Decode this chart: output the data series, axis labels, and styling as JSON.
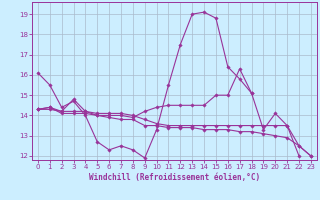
{
  "xlabel": "Windchill (Refroidissement éolien,°C)",
  "background_color": "#cceeff",
  "grid_color": "#aabbcc",
  "line_color": "#993399",
  "xlim": [
    -0.5,
    23.5
  ],
  "ylim": [
    11.8,
    19.6
  ],
  "yticks": [
    12,
    13,
    14,
    15,
    16,
    17,
    18,
    19
  ],
  "xticks": [
    0,
    1,
    2,
    3,
    4,
    5,
    6,
    7,
    8,
    9,
    10,
    11,
    12,
    13,
    14,
    15,
    16,
    17,
    18,
    19,
    20,
    21,
    22,
    23
  ],
  "series": [
    {
      "x": [
        0,
        1,
        2,
        3,
        4,
        5,
        6,
        7,
        8,
        9,
        10,
        11,
        12,
        13,
        14,
        15,
        16,
        17,
        18,
        19,
        20,
        21,
        22
      ],
      "y": [
        16.1,
        15.5,
        14.4,
        14.7,
        14.0,
        12.7,
        12.3,
        12.5,
        12.3,
        11.9,
        13.3,
        15.5,
        17.5,
        19.0,
        19.1,
        18.8,
        16.4,
        15.8,
        15.1,
        13.3,
        14.1,
        13.5,
        12.0
      ]
    },
    {
      "x": [
        0,
        1,
        2,
        3,
        4,
        5,
        6,
        7,
        8,
        9,
        10,
        11,
        12,
        13,
        14,
        15,
        16,
        17,
        18,
        19,
        20,
        21,
        22,
        23
      ],
      "y": [
        14.3,
        14.4,
        14.1,
        14.1,
        14.1,
        14.0,
        13.9,
        13.8,
        13.8,
        13.5,
        13.5,
        13.4,
        13.4,
        13.4,
        13.3,
        13.3,
        13.3,
        13.2,
        13.2,
        13.1,
        13.0,
        12.9,
        12.5,
        12.0
      ]
    },
    {
      "x": [
        0,
        1,
        2,
        3,
        4,
        5,
        6,
        7,
        8,
        9,
        10,
        11,
        12,
        13,
        14,
        15,
        16,
        17,
        18
      ],
      "y": [
        14.3,
        14.3,
        14.2,
        14.8,
        14.2,
        14.0,
        14.0,
        14.0,
        13.9,
        14.2,
        14.4,
        14.5,
        14.5,
        14.5,
        14.5,
        15.0,
        15.0,
        16.3,
        15.1
      ]
    },
    {
      "x": [
        0,
        1,
        2,
        3,
        4,
        5,
        6,
        7,
        8,
        9,
        10,
        11,
        12,
        13,
        14,
        15,
        16,
        17,
        18,
        19,
        20,
        21,
        22,
        23
      ],
      "y": [
        14.3,
        14.4,
        14.2,
        14.2,
        14.2,
        14.1,
        14.1,
        14.1,
        14.0,
        13.8,
        13.6,
        13.5,
        13.5,
        13.5,
        13.5,
        13.5,
        13.5,
        13.5,
        13.5,
        13.5,
        13.5,
        13.5,
        12.5,
        12.0
      ]
    }
  ]
}
